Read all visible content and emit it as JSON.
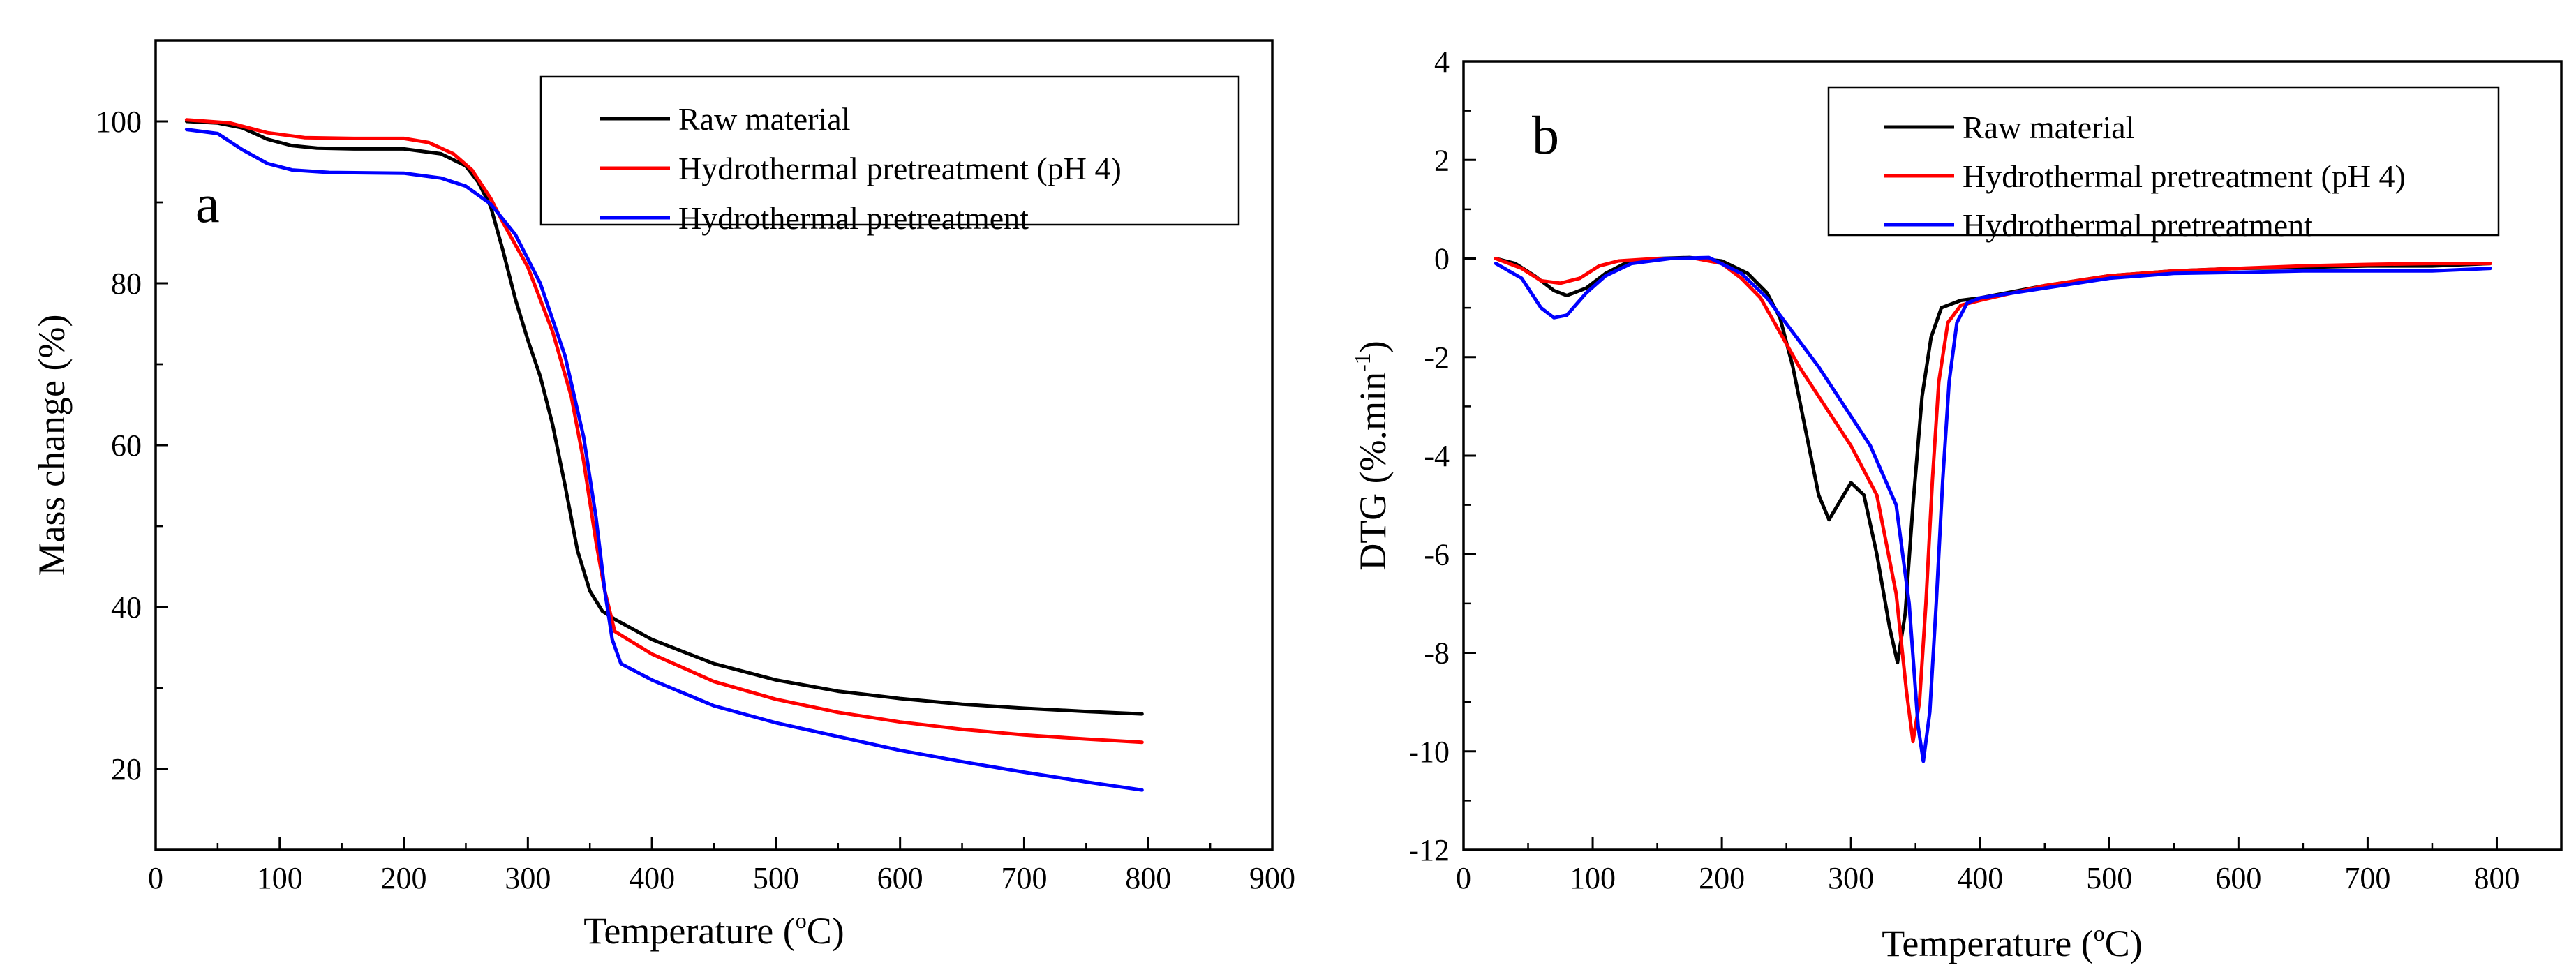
{
  "chart_data": [
    {
      "type": "line",
      "panel_label": "a",
      "xlabel_main": "Temperature (",
      "xlabel_sup": "o",
      "xlabel_end": "C)",
      "ylabel": "Mass change (%)",
      "xlim": [
        0,
        900
      ],
      "ylim": [
        10,
        110
      ],
      "xticks": [
        0,
        100,
        200,
        300,
        400,
        500,
        600,
        700,
        800,
        900
      ],
      "yticks": [
        20,
        40,
        60,
        80,
        100
      ],
      "legend_position": "top-right",
      "series": [
        {
          "name": "Raw material",
          "color": "#000000",
          "points": [
            [
              25,
              100
            ],
            [
              50,
              99.8
            ],
            [
              70,
              99.2
            ],
            [
              90,
              97.8
            ],
            [
              110,
              97.0
            ],
            [
              130,
              96.7
            ],
            [
              160,
              96.6
            ],
            [
              200,
              96.6
            ],
            [
              230,
              96.0
            ],
            [
              250,
              94.5
            ],
            [
              260,
              92.5
            ],
            [
              270,
              89.5
            ],
            [
              280,
              84.0
            ],
            [
              290,
              78.0
            ],
            [
              300,
              73.0
            ],
            [
              310,
              68.5
            ],
            [
              320,
              62.5
            ],
            [
              330,
              55.0
            ],
            [
              340,
              47.0
            ],
            [
              350,
              42.0
            ],
            [
              360,
              39.5
            ],
            [
              370,
              38.5
            ],
            [
              400,
              36.0
            ],
            [
              450,
              33.0
            ],
            [
              500,
              31.0
            ],
            [
              550,
              29.6
            ],
            [
              600,
              28.7
            ],
            [
              650,
              28.0
            ],
            [
              700,
              27.5
            ],
            [
              750,
              27.1
            ],
            [
              795,
              26.8
            ]
          ]
        },
        {
          "name": "Hydrothermal pretreatment (pH 4)",
          "color": "#ff0000",
          "points": [
            [
              25,
              100.2
            ],
            [
              60,
              99.8
            ],
            [
              90,
              98.6
            ],
            [
              120,
              98.0
            ],
            [
              160,
              97.9
            ],
            [
              200,
              97.9
            ],
            [
              220,
              97.4
            ],
            [
              240,
              96.0
            ],
            [
              255,
              94.0
            ],
            [
              270,
              90.5
            ],
            [
              280,
              87.5
            ],
            [
              300,
              82.0
            ],
            [
              320,
              74.0
            ],
            [
              335,
              66.0
            ],
            [
              345,
              58.0
            ],
            [
              355,
              48.0
            ],
            [
              362,
              42.0
            ],
            [
              370,
              37.0
            ],
            [
              400,
              34.2
            ],
            [
              450,
              30.8
            ],
            [
              500,
              28.6
            ],
            [
              550,
              27.0
            ],
            [
              600,
              25.8
            ],
            [
              650,
              24.9
            ],
            [
              700,
              24.2
            ],
            [
              750,
              23.7
            ],
            [
              795,
              23.3
            ]
          ]
        },
        {
          "name": "Hydrothermal pretreatment",
          "color": "#0000ff",
          "points": [
            [
              25,
              99.0
            ],
            [
              50,
              98.5
            ],
            [
              70,
              96.5
            ],
            [
              90,
              94.8
            ],
            [
              110,
              94.0
            ],
            [
              140,
              93.7
            ],
            [
              200,
              93.6
            ],
            [
              230,
              93.0
            ],
            [
              250,
              92.0
            ],
            [
              270,
              89.8
            ],
            [
              290,
              86.0
            ],
            [
              310,
              80.0
            ],
            [
              330,
              71.0
            ],
            [
              345,
              61.0
            ],
            [
              355,
              51.0
            ],
            [
              362,
              42.0
            ],
            [
              368,
              36.0
            ],
            [
              375,
              33.0
            ],
            [
              400,
              31.0
            ],
            [
              450,
              27.8
            ],
            [
              500,
              25.7
            ],
            [
              550,
              24.0
            ],
            [
              600,
              22.3
            ],
            [
              650,
              20.9
            ],
            [
              700,
              19.6
            ],
            [
              750,
              18.4
            ],
            [
              795,
              17.4
            ]
          ]
        }
      ]
    },
    {
      "type": "line",
      "panel_label": "b",
      "xlabel_main": "Temperature (",
      "xlabel_sup": "o",
      "xlabel_end": "C)",
      "ylabel_main": "DTG (%.min",
      "ylabel_sup": "-1",
      "ylabel_end": ")",
      "xlim": [
        0,
        850
      ],
      "ylim": [
        -12,
        4
      ],
      "xticks": [
        0,
        100,
        200,
        300,
        400,
        500,
        600,
        700,
        800
      ],
      "yticks": [
        -12,
        -10,
        -8,
        -6,
        -4,
        -2,
        0,
        2,
        4
      ],
      "legend_position": "top-right",
      "series": [
        {
          "name": "Raw material",
          "color": "#000000",
          "points": [
            [
              25,
              0
            ],
            [
              40,
              -0.1
            ],
            [
              55,
              -0.35
            ],
            [
              70,
              -0.65
            ],
            [
              80,
              -0.75
            ],
            [
              95,
              -0.6
            ],
            [
              110,
              -0.3
            ],
            [
              125,
              -0.1
            ],
            [
              150,
              0
            ],
            [
              175,
              0.02
            ],
            [
              200,
              -0.05
            ],
            [
              220,
              -0.3
            ],
            [
              235,
              -0.7
            ],
            [
              245,
              -1.2
            ],
            [
              255,
              -2.2
            ],
            [
              265,
              -3.5
            ],
            [
              275,
              -4.8
            ],
            [
              283,
              -5.3
            ],
            [
              292,
              -4.9
            ],
            [
              300,
              -4.55
            ],
            [
              310,
              -4.8
            ],
            [
              320,
              -6.0
            ],
            [
              330,
              -7.5
            ],
            [
              336,
              -8.2
            ],
            [
              342,
              -7.2
            ],
            [
              348,
              -5.0
            ],
            [
              355,
              -2.8
            ],
            [
              362,
              -1.6
            ],
            [
              370,
              -1.0
            ],
            [
              385,
              -0.85
            ],
            [
              400,
              -0.8
            ],
            [
              450,
              -0.55
            ],
            [
              500,
              -0.35
            ],
            [
              550,
              -0.25
            ],
            [
              600,
              -0.2
            ],
            [
              650,
              -0.18
            ],
            [
              700,
              -0.15
            ],
            [
              750,
              -0.15
            ],
            [
              795,
              -0.1
            ]
          ]
        },
        {
          "name": "Hydrothermal pretreatment (pH 4)",
          "color": "#ff0000",
          "points": [
            [
              25,
              0
            ],
            [
              45,
              -0.2
            ],
            [
              60,
              -0.45
            ],
            [
              75,
              -0.5
            ],
            [
              90,
              -0.4
            ],
            [
              105,
              -0.15
            ],
            [
              120,
              -0.05
            ],
            [
              150,
              0
            ],
            [
              180,
              0
            ],
            [
              200,
              -0.1
            ],
            [
              215,
              -0.4
            ],
            [
              230,
              -0.8
            ],
            [
              245,
              -1.5
            ],
            [
              260,
              -2.2
            ],
            [
              280,
              -3.0
            ],
            [
              300,
              -3.8
            ],
            [
              320,
              -4.8
            ],
            [
              335,
              -6.8
            ],
            [
              343,
              -8.8
            ],
            [
              348,
              -9.8
            ],
            [
              353,
              -9.0
            ],
            [
              358,
              -7.0
            ],
            [
              363,
              -4.5
            ],
            [
              368,
              -2.5
            ],
            [
              375,
              -1.3
            ],
            [
              385,
              -0.95
            ],
            [
              400,
              -0.85
            ],
            [
              450,
              -0.55
            ],
            [
              500,
              -0.35
            ],
            [
              550,
              -0.25
            ],
            [
              600,
              -0.2
            ],
            [
              650,
              -0.15
            ],
            [
              700,
              -0.12
            ],
            [
              750,
              -0.1
            ],
            [
              795,
              -0.1
            ]
          ]
        },
        {
          "name": "Hydrothermal pretreatment",
          "color": "#0000ff",
          "points": [
            [
              25,
              -0.1
            ],
            [
              45,
              -0.4
            ],
            [
              60,
              -1.0
            ],
            [
              70,
              -1.2
            ],
            [
              80,
              -1.15
            ],
            [
              95,
              -0.7
            ],
            [
              110,
              -0.35
            ],
            [
              130,
              -0.1
            ],
            [
              160,
              0
            ],
            [
              190,
              0.02
            ],
            [
              215,
              -0.3
            ],
            [
              235,
              -0.8
            ],
            [
              255,
              -1.5
            ],
            [
              275,
              -2.2
            ],
            [
              295,
              -3.0
            ],
            [
              315,
              -3.8
            ],
            [
              335,
              -5.0
            ],
            [
              345,
              -7.0
            ],
            [
              352,
              -9.5
            ],
            [
              356,
              -10.2
            ],
            [
              361,
              -9.2
            ],
            [
              366,
              -7.0
            ],
            [
              371,
              -4.5
            ],
            [
              376,
              -2.5
            ],
            [
              382,
              -1.3
            ],
            [
              390,
              -0.9
            ],
            [
              400,
              -0.8
            ],
            [
              450,
              -0.6
            ],
            [
              500,
              -0.4
            ],
            [
              550,
              -0.3
            ],
            [
              600,
              -0.28
            ],
            [
              650,
              -0.25
            ],
            [
              700,
              -0.25
            ],
            [
              750,
              -0.25
            ],
            [
              795,
              -0.2
            ]
          ]
        }
      ]
    }
  ]
}
